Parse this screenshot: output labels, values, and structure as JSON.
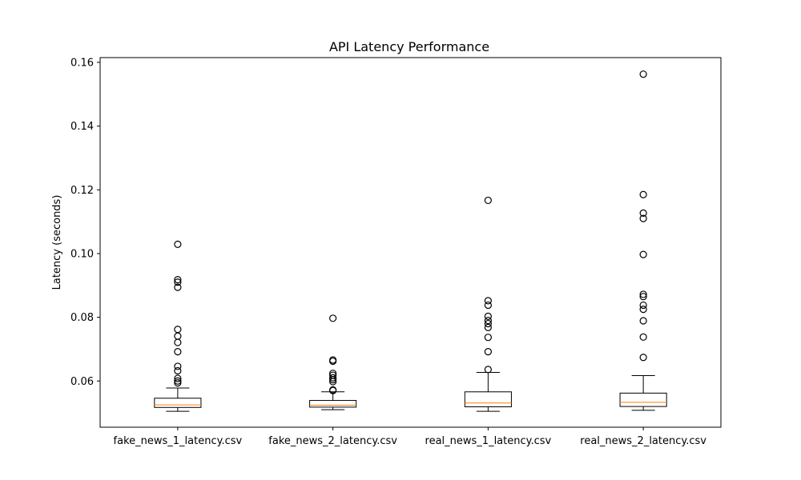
{
  "chart_data": {
    "type": "box",
    "title": "API Latency Performance",
    "xlabel": "",
    "ylabel": "Latency (seconds)",
    "ylim": [
      0.0455,
      0.1615
    ],
    "yticks": [
      0.06,
      0.08,
      0.1,
      0.12,
      0.14,
      0.16
    ],
    "ytick_labels": [
      "0.06",
      "0.08",
      "0.10",
      "0.12",
      "0.14",
      "0.16"
    ],
    "grid": false,
    "legend": "none",
    "colors": {
      "box": "#000000",
      "median": "#ff7f0e",
      "flier_edge": "#000000"
    },
    "boxes": [
      {
        "label": "fake_news_1_latency.csv",
        "whisker_low": 0.0505,
        "q1": 0.0517,
        "median": 0.0525,
        "q3": 0.0546,
        "whisker_high": 0.0578,
        "fliers": [
          0.1029,
          0.0918,
          0.091,
          0.0894,
          0.0762,
          0.0741,
          0.0721,
          0.0692,
          0.0646,
          0.0632,
          0.0608,
          0.06,
          0.0594
        ]
      },
      {
        "label": "fake_news_2_latency.csv",
        "whisker_low": 0.051,
        "q1": 0.0518,
        "median": 0.0524,
        "q3": 0.0539,
        "whisker_high": 0.0566,
        "fliers": [
          0.0797,
          0.0666,
          0.0662,
          0.0624,
          0.0618,
          0.061,
          0.0604,
          0.0598,
          0.0572,
          0.057
        ]
      },
      {
        "label": "real_news_1_latency.csv",
        "whisker_low": 0.0505,
        "q1": 0.0519,
        "median": 0.0531,
        "q3": 0.0566,
        "whisker_high": 0.0627,
        "fliers": [
          0.1167,
          0.0852,
          0.0838,
          0.0803,
          0.079,
          0.078,
          0.0768,
          0.0737,
          0.0692,
          0.0636
        ]
      },
      {
        "label": "real_news_2_latency.csv",
        "whisker_low": 0.0508,
        "q1": 0.052,
        "median": 0.0533,
        "q3": 0.0562,
        "whisker_high": 0.0617,
        "fliers": [
          0.1563,
          0.1185,
          0.1127,
          0.111,
          0.0997,
          0.0872,
          0.0865,
          0.0838,
          0.0825,
          0.0789,
          0.0738,
          0.0674
        ]
      }
    ]
  }
}
